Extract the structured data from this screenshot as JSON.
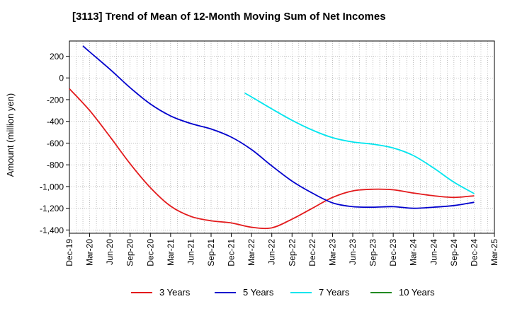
{
  "chart_data": {
    "type": "line",
    "title": "[3113]  Trend of Mean of 12-Month Moving Sum of Net Incomes",
    "ylabel": "Amount (million yen)",
    "xlabel": "",
    "ylim": [
      -1430,
      340
    ],
    "y_ticks": [
      200,
      0,
      -200,
      -400,
      -600,
      -800,
      -1000,
      -1200,
      -1400
    ],
    "y_tick_labels": [
      "200",
      "0",
      "-200",
      "-400",
      "-600",
      "-800",
      "-1,000",
      "-1,200",
      "-1,400"
    ],
    "x_tick_labels": [
      "Dec-19",
      "Mar-20",
      "Jun-20",
      "Sep-20",
      "Dec-20",
      "Mar-21",
      "Jun-21",
      "Sep-21",
      "Dec-21",
      "Mar-22",
      "Jun-22",
      "Sep-22",
      "Dec-22",
      "Mar-23",
      "Jun-23",
      "Sep-23",
      "Dec-23",
      "Mar-24",
      "Jun-24",
      "Sep-24",
      "Dec-24",
      "Mar-25"
    ],
    "grid": true,
    "legend_position": "bottom",
    "series": [
      {
        "name": "3 Years",
        "color": "#e31a1c",
        "x": [
          "Dec-19",
          "Mar-20",
          "Jun-20",
          "Sep-20",
          "Dec-20",
          "Mar-21",
          "Jun-21",
          "Sep-21",
          "Dec-21",
          "Mar-22",
          "Jun-22",
          "Sep-22",
          "Dec-22",
          "Mar-23",
          "Jun-23",
          "Sep-23",
          "Dec-23",
          "Mar-24",
          "Jun-24",
          "Sep-24",
          "Dec-24"
        ],
        "values": [
          -100,
          -300,
          -540,
          -790,
          -1010,
          -1180,
          -1275,
          -1315,
          -1335,
          -1375,
          -1380,
          -1300,
          -1200,
          -1100,
          -1040,
          -1025,
          -1030,
          -1060,
          -1085,
          -1100,
          -1085
        ]
      },
      {
        "name": "5 Years",
        "color": "#0000cd",
        "x": [
          "Feb-20",
          "Mar-20",
          "Jun-20",
          "Sep-20",
          "Dec-20",
          "Mar-21",
          "Jun-21",
          "Sep-21",
          "Dec-21",
          "Mar-22",
          "Jun-22",
          "Sep-22",
          "Dec-22",
          "Mar-23",
          "Jun-23",
          "Sep-23",
          "Dec-23",
          "Mar-24",
          "Jun-24",
          "Sep-24",
          "Dec-24"
        ],
        "values": [
          295,
          240,
          80,
          -90,
          -240,
          -350,
          -420,
          -470,
          -545,
          -660,
          -810,
          -950,
          -1060,
          -1150,
          -1185,
          -1190,
          -1185,
          -1200,
          -1190,
          -1175,
          -1145
        ]
      },
      {
        "name": "7 Years",
        "color": "#00e5ee",
        "x": [
          "Feb-22",
          "Mar-22",
          "Jun-22",
          "Sep-22",
          "Dec-22",
          "Mar-23",
          "Jun-23",
          "Sep-23",
          "Dec-23",
          "Mar-24",
          "Jun-24",
          "Sep-24",
          "Dec-24"
        ],
        "values": [
          -140,
          -175,
          -285,
          -390,
          -480,
          -550,
          -590,
          -610,
          -645,
          -715,
          -830,
          -960,
          -1065
        ]
      },
      {
        "name": "10 Years",
        "color": "#228b22",
        "x": [],
        "values": []
      }
    ]
  }
}
